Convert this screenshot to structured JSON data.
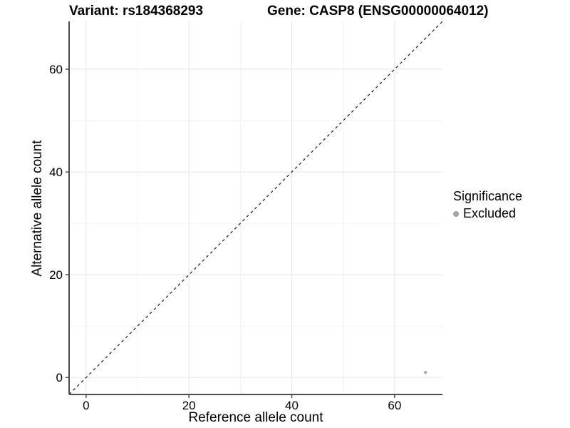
{
  "chart_data": {
    "type": "scatter",
    "title_left": "Variant: rs184368293",
    "title_right": "Gene: CASP8 (ENSG00000064012)",
    "xlabel": "Reference allele count",
    "ylabel": "Alternative allele count",
    "xlim": [
      -3.3,
      69.3
    ],
    "ylim": [
      -3.3,
      69.3
    ],
    "x_major_ticks": [
      0,
      20,
      40,
      60
    ],
    "y_major_ticks": [
      0,
      20,
      40,
      60
    ],
    "x_minor_ticks": [
      10,
      30,
      50,
      70
    ],
    "y_minor_ticks": [
      10,
      30,
      50,
      70
    ],
    "grid": true,
    "identity_line": {
      "slope": 1,
      "intercept": 0,
      "style": "dashed",
      "color": "#1a1a1a"
    },
    "series": [
      {
        "name": "Excluded",
        "color": "#a9a9a9",
        "points": [
          {
            "x": 66,
            "y": 1
          }
        ]
      }
    ],
    "legend": {
      "title": "Significance",
      "position": "right",
      "items": [
        {
          "label": "Excluded",
          "color": "#a3a3a3"
        }
      ]
    },
    "colors": {
      "background": "#ffffff",
      "grid_major": "#e5e5e5",
      "grid_minor": "#f2f2f2",
      "axis_line": "#4d4d4d",
      "tick_text": "#000000"
    }
  }
}
